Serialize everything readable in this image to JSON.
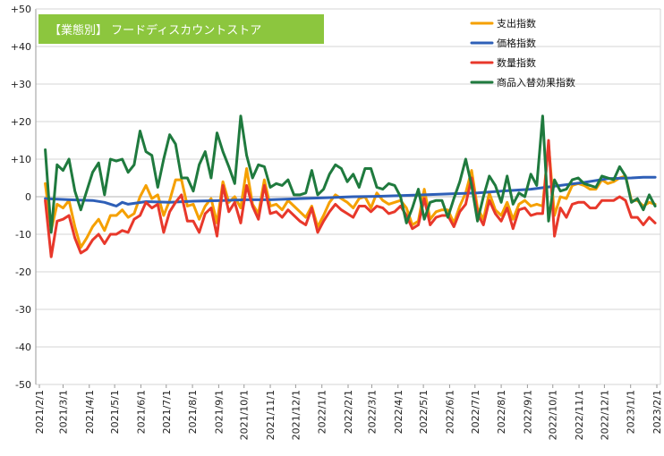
{
  "chart_data": {
    "type": "line",
    "title": "【業態別】 フードディスカウントストア",
    "title_bg_color": "#8cc63e",
    "xlabel": "",
    "ylabel": "",
    "ylim": [
      -50,
      50
    ],
    "y_ticks": [
      50,
      40,
      30,
      20,
      10,
      0,
      -10,
      -20,
      -30,
      -40,
      -50
    ],
    "y_tick_labels": [
      "+50",
      "+40",
      "+30",
      "+20",
      "+10",
      "0",
      "-10",
      "-20",
      "-30",
      "-40",
      "-50"
    ],
    "x_tick_labels": [
      "2021/2/1",
      "2021/3/1",
      "2021/4/1",
      "2021/5/1",
      "2021/6/1",
      "2021/7/1",
      "2021/8/1",
      "2021/9/1",
      "2021/10/1",
      "2021/11/1",
      "2021/12/1",
      "2022/1/1",
      "2022/2/1",
      "2022/3/1",
      "2022/4/1",
      "2022/5/1",
      "2022/6/1",
      "2022/7/1",
      "2022/8/1",
      "2022/9/1",
      "2022/10/1",
      "2022/11/1",
      "2022/12/1",
      "2023/1/1",
      "2023/2/1"
    ],
    "x_start": "2021-02-01",
    "x_end": "2023-02-01",
    "grid": true,
    "legend_position": "top-right",
    "series": [
      {
        "name": "支出指数",
        "color": "#f5a000",
        "x": [
          "2021-02-08",
          "2021-02-15",
          "2021-02-22",
          "2021-03-01",
          "2021-03-08",
          "2021-03-15",
          "2021-03-22",
          "2021-03-29",
          "2021-04-05",
          "2021-04-12",
          "2021-04-19",
          "2021-04-26",
          "2021-05-03",
          "2021-05-10",
          "2021-05-17",
          "2021-05-24",
          "2021-05-31",
          "2021-06-07",
          "2021-06-14",
          "2021-06-21",
          "2021-06-28",
          "2021-07-05",
          "2021-07-12",
          "2021-07-19",
          "2021-07-26",
          "2021-08-02",
          "2021-08-09",
          "2021-08-16",
          "2021-08-23",
          "2021-08-30",
          "2021-09-06",
          "2021-09-13",
          "2021-09-20",
          "2021-09-27",
          "2021-10-04",
          "2021-10-11",
          "2021-10-18",
          "2021-10-25",
          "2021-11-01",
          "2021-11-08",
          "2021-11-15",
          "2021-11-22",
          "2021-11-29",
          "2021-12-06",
          "2021-12-13",
          "2021-12-20",
          "2021-12-27",
          "2022-01-03",
          "2022-01-10",
          "2022-01-17",
          "2022-01-24",
          "2022-01-31",
          "2022-02-07",
          "2022-02-14",
          "2022-02-21",
          "2022-02-28",
          "2022-03-07",
          "2022-03-14",
          "2022-03-21",
          "2022-03-28",
          "2022-04-04",
          "2022-04-11",
          "2022-04-18",
          "2022-04-25",
          "2022-05-02",
          "2022-05-09",
          "2022-05-16",
          "2022-05-23",
          "2022-05-30",
          "2022-06-06",
          "2022-06-13",
          "2022-06-20",
          "2022-06-27",
          "2022-07-04",
          "2022-07-11",
          "2022-07-18",
          "2022-07-25",
          "2022-08-01",
          "2022-08-08",
          "2022-08-15",
          "2022-08-22",
          "2022-08-29",
          "2022-09-05",
          "2022-09-12",
          "2022-09-19",
          "2022-09-26",
          "2022-10-03",
          "2022-10-10",
          "2022-10-17",
          "2022-10-24",
          "2022-10-31",
          "2022-11-07",
          "2022-11-14",
          "2022-11-21",
          "2022-11-28",
          "2022-12-05",
          "2022-12-12",
          "2022-12-19",
          "2022-12-26",
          "2023-01-02",
          "2023-01-09",
          "2023-01-16",
          "2023-01-23",
          "2023-01-30"
        ],
        "values": [
          3.5,
          -9.0,
          -2.0,
          -3.0,
          -1.0,
          -8.0,
          -13.5,
          -11.0,
          -8.0,
          -6.0,
          -9.0,
          -5.0,
          -5.0,
          -3.5,
          -5.5,
          -4.5,
          0.0,
          3.0,
          -0.5,
          0.5,
          -5.0,
          -1.0,
          4.5,
          4.5,
          -2.5,
          -2.0,
          -6.0,
          -2.5,
          -0.5,
          -7.0,
          4.0,
          -1.5,
          0.0,
          -3.0,
          7.5,
          -2.0,
          -4.5,
          4.5,
          -2.5,
          -2.0,
          -3.5,
          -1.0,
          -2.5,
          -4.0,
          -5.5,
          -2.5,
          -8.0,
          -5.0,
          -1.5,
          0.5,
          -0.5,
          -1.5,
          -3.0,
          -0.5,
          0.0,
          -3.0,
          1.0,
          -1.0,
          -2.0,
          -1.5,
          -1.0,
          -3.0,
          -7.5,
          -6.5,
          2.0,
          -6.0,
          -4.0,
          -3.5,
          -3.5,
          -7.0,
          -2.5,
          1.0,
          7.0,
          -3.0,
          -6.0,
          1.0,
          -3.5,
          -5.0,
          -1.5,
          -6.0,
          -2.0,
          -1.0,
          -2.5,
          -2.0,
          -2.5,
          14.0,
          -5.0,
          0.0,
          -0.5,
          3.0,
          3.5,
          3.0,
          2.0,
          2.0,
          4.5,
          3.5,
          4.0,
          5.0,
          5.5,
          -1.0,
          -1.0,
          -2.5,
          -1.5,
          -2.0
        ]
      },
      {
        "name": "価格指数",
        "color": "#2e5fb7",
        "x": [
          "2021-02-08",
          "2021-03-08",
          "2021-04-05",
          "2021-04-19",
          "2021-05-03",
          "2021-05-10",
          "2021-05-17",
          "2021-06-07",
          "2021-07-05",
          "2021-08-02",
          "2021-09-06",
          "2021-10-04",
          "2021-11-01",
          "2021-12-06",
          "2022-01-03",
          "2022-02-07",
          "2022-03-07",
          "2022-04-04",
          "2022-05-02",
          "2022-06-06",
          "2022-07-04",
          "2022-08-01",
          "2022-09-05",
          "2022-10-03",
          "2022-11-07",
          "2022-12-05",
          "2023-01-02",
          "2023-01-16",
          "2023-01-30"
        ],
        "values": [
          -0.5,
          -0.8,
          -1.0,
          -1.5,
          -2.5,
          -1.5,
          -2.0,
          -1.3,
          -1.5,
          -1.2,
          -1.0,
          -0.8,
          -0.8,
          -0.5,
          -0.3,
          0.0,
          0.1,
          0.3,
          0.5,
          0.8,
          1.0,
          1.5,
          2.0,
          2.8,
          3.8,
          4.8,
          5.0,
          5.2,
          5.2
        ]
      },
      {
        "name": "数量指数",
        "color": "#e8382b",
        "x": [
          "2021-02-08",
          "2021-02-15",
          "2021-02-22",
          "2021-03-01",
          "2021-03-08",
          "2021-03-15",
          "2021-03-22",
          "2021-03-29",
          "2021-04-05",
          "2021-04-12",
          "2021-04-19",
          "2021-04-26",
          "2021-05-03",
          "2021-05-10",
          "2021-05-17",
          "2021-05-24",
          "2021-05-31",
          "2021-06-07",
          "2021-06-14",
          "2021-06-21",
          "2021-06-28",
          "2021-07-05",
          "2021-07-12",
          "2021-07-19",
          "2021-07-26",
          "2021-08-02",
          "2021-08-09",
          "2021-08-16",
          "2021-08-23",
          "2021-08-30",
          "2021-09-06",
          "2021-09-13",
          "2021-09-20",
          "2021-09-27",
          "2021-10-04",
          "2021-10-11",
          "2021-10-18",
          "2021-10-25",
          "2021-11-01",
          "2021-11-08",
          "2021-11-15",
          "2021-11-22",
          "2021-11-29",
          "2021-12-06",
          "2021-12-13",
          "2021-12-20",
          "2021-12-27",
          "2022-01-03",
          "2022-01-10",
          "2022-01-17",
          "2022-01-24",
          "2022-01-31",
          "2022-02-07",
          "2022-02-14",
          "2022-02-21",
          "2022-02-28",
          "2022-03-07",
          "2022-03-14",
          "2022-03-21",
          "2022-03-28",
          "2022-04-04",
          "2022-04-11",
          "2022-04-18",
          "2022-04-25",
          "2022-05-02",
          "2022-05-09",
          "2022-05-16",
          "2022-05-23",
          "2022-05-30",
          "2022-06-06",
          "2022-06-13",
          "2022-06-20",
          "2022-06-27",
          "2022-07-04",
          "2022-07-11",
          "2022-07-18",
          "2022-07-25",
          "2022-08-01",
          "2022-08-08",
          "2022-08-15",
          "2022-08-22",
          "2022-08-29",
          "2022-09-05",
          "2022-09-12",
          "2022-09-19",
          "2022-09-26",
          "2022-10-03",
          "2022-10-10",
          "2022-10-17",
          "2022-10-24",
          "2022-10-31",
          "2022-11-07",
          "2022-11-14",
          "2022-11-21",
          "2022-11-28",
          "2022-12-05",
          "2022-12-12",
          "2022-12-19",
          "2022-12-26",
          "2023-01-02",
          "2023-01-09",
          "2023-01-16",
          "2023-01-23",
          "2023-01-30"
        ],
        "values": [
          -1.0,
          -16.0,
          -6.5,
          -6.0,
          -5.0,
          -11.0,
          -15.0,
          -14.0,
          -11.5,
          -10.0,
          -12.5,
          -10.0,
          -10.0,
          -9.0,
          -9.5,
          -6.0,
          -5.0,
          -1.5,
          -3.0,
          -2.0,
          -9.5,
          -4.0,
          -1.5,
          0.5,
          -6.5,
          -6.5,
          -9.5,
          -4.5,
          -3.0,
          -10.5,
          3.0,
          -4.0,
          -1.5,
          -7.0,
          3.0,
          -2.5,
          -6.0,
          3.0,
          -4.5,
          -4.0,
          -5.5,
          -3.5,
          -5.0,
          -6.5,
          -7.5,
          -3.0,
          -9.5,
          -6.5,
          -4.0,
          -2.0,
          -3.5,
          -4.5,
          -5.5,
          -2.5,
          -2.5,
          -4.0,
          -2.5,
          -3.0,
          -4.5,
          -4.0,
          -2.5,
          -5.0,
          -8.5,
          -7.5,
          -0.5,
          -7.5,
          -5.5,
          -5.0,
          -5.0,
          -8.0,
          -4.0,
          -2.0,
          5.0,
          -4.5,
          -7.5,
          -1.0,
          -4.5,
          -6.5,
          -3.0,
          -8.5,
          -3.5,
          -3.0,
          -5.0,
          -4.5,
          -4.5,
          15.0,
          -10.5,
          -3.0,
          -5.5,
          -2.0,
          -1.5,
          -1.5,
          -3.0,
          -3.0,
          -1.0,
          -1.0,
          -1.0,
          0.0,
          -1.0,
          -5.5,
          -5.5,
          -7.5,
          -5.5,
          -7.0
        ]
      },
      {
        "name": "商品入替効果指数",
        "color": "#1f7a3e",
        "x": [
          "2021-02-08",
          "2021-02-15",
          "2021-02-22",
          "2021-03-01",
          "2021-03-08",
          "2021-03-15",
          "2021-03-22",
          "2021-03-29",
          "2021-04-05",
          "2021-04-12",
          "2021-04-19",
          "2021-04-26",
          "2021-05-03",
          "2021-05-10",
          "2021-05-17",
          "2021-05-24",
          "2021-05-31",
          "2021-06-07",
          "2021-06-14",
          "2021-06-21",
          "2021-06-28",
          "2021-07-05",
          "2021-07-12",
          "2021-07-19",
          "2021-07-26",
          "2021-08-02",
          "2021-08-09",
          "2021-08-16",
          "2021-08-23",
          "2021-08-30",
          "2021-09-06",
          "2021-09-13",
          "2021-09-20",
          "2021-09-27",
          "2021-10-04",
          "2021-10-11",
          "2021-10-18",
          "2021-10-25",
          "2021-11-01",
          "2021-11-08",
          "2021-11-15",
          "2021-11-22",
          "2021-11-29",
          "2021-12-06",
          "2021-12-13",
          "2021-12-20",
          "2021-12-27",
          "2022-01-03",
          "2022-01-10",
          "2022-01-17",
          "2022-01-24",
          "2022-01-31",
          "2022-02-07",
          "2022-02-14",
          "2022-02-21",
          "2022-02-28",
          "2022-03-07",
          "2022-03-14",
          "2022-03-21",
          "2022-03-28",
          "2022-04-04",
          "2022-04-11",
          "2022-04-18",
          "2022-04-25",
          "2022-05-02",
          "2022-05-09",
          "2022-05-16",
          "2022-05-23",
          "2022-05-30",
          "2022-06-06",
          "2022-06-13",
          "2022-06-20",
          "2022-06-27",
          "2022-07-04",
          "2022-07-11",
          "2022-07-18",
          "2022-07-25",
          "2022-08-01",
          "2022-08-08",
          "2022-08-15",
          "2022-08-22",
          "2022-08-29",
          "2022-09-05",
          "2022-09-12",
          "2022-09-19",
          "2022-09-26",
          "2022-10-03",
          "2022-10-10",
          "2022-10-17",
          "2022-10-24",
          "2022-10-31",
          "2022-11-07",
          "2022-11-14",
          "2022-11-21",
          "2022-11-28",
          "2022-12-05",
          "2022-12-12",
          "2022-12-19",
          "2022-12-26",
          "2023-01-02",
          "2023-01-09",
          "2023-01-16",
          "2023-01-23",
          "2023-01-30"
        ],
        "values": [
          12.5,
          -9.5,
          8.5,
          7.0,
          10.0,
          1.5,
          -3.5,
          1.5,
          6.5,
          9.0,
          0.5,
          10.0,
          9.5,
          10.0,
          6.5,
          8.5,
          17.5,
          12.0,
          11.0,
          2.5,
          10.0,
          16.5,
          14.0,
          5.0,
          5.0,
          1.5,
          8.5,
          12.0,
          5.0,
          17.0,
          12.0,
          8.0,
          3.5,
          21.5,
          11.0,
          5.0,
          8.5,
          8.0,
          2.5,
          3.5,
          3.0,
          4.5,
          0.5,
          0.5,
          1.0,
          7.0,
          0.5,
          2.0,
          6.0,
          8.5,
          7.5,
          4.0,
          6.0,
          2.5,
          7.5,
          7.5,
          2.5,
          2.0,
          3.5,
          3.0,
          0.0,
          -7.0,
          -3.0,
          2.0,
          -6.0,
          -1.5,
          -1.0,
          -1.0,
          -5.5,
          -0.5,
          4.0,
          10.0,
          3.0,
          -6.5,
          0.0,
          5.5,
          3.0,
          -1.5,
          5.5,
          -2.0,
          1.0,
          0.0,
          6.0,
          3.0,
          21.5,
          -6.5,
          4.5,
          1.5,
          2.0,
          4.5,
          5.0,
          3.5,
          3.0,
          2.5,
          5.5,
          5.0,
          4.5,
          8.0,
          5.5,
          -1.5,
          -0.5,
          -3.5,
          0.5,
          -2.5
        ]
      }
    ]
  }
}
